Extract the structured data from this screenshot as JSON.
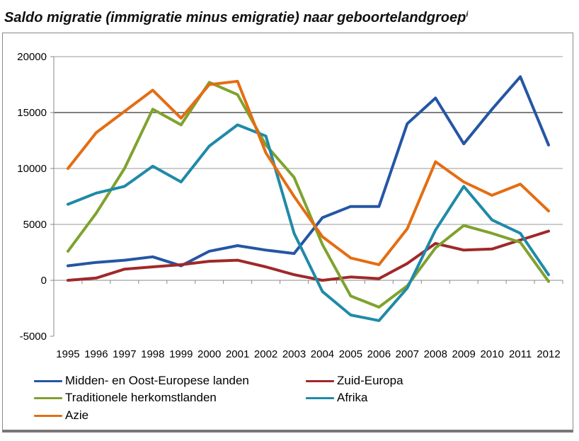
{
  "title": {
    "main": "Saldo migratie (immigratie minus emigratie) naar geboortelandgroep",
    "superscript": "i"
  },
  "chart_data": {
    "type": "line",
    "title": "Saldo migratie (immigratie minus emigratie) naar geboortelandgroep",
    "xlabel": "",
    "ylabel": "",
    "ylim": [
      -5000,
      20000
    ],
    "yticks": [
      -5000,
      0,
      5000,
      10000,
      15000,
      20000
    ],
    "grid": "horizontal",
    "legend_position": "bottom",
    "x": [
      "1995",
      "1996",
      "1997",
      "1998",
      "1999",
      "2000",
      "2001",
      "2002",
      "2003",
      "2004",
      "2005",
      "2006",
      "2007",
      "2008",
      "2009",
      "2010",
      "2011",
      "2012"
    ],
    "series": [
      {
        "name": "Midden- en Oost-Europese landen",
        "color": "#2456A4",
        "values": [
          1300,
          1600,
          1800,
          2100,
          1300,
          2600,
          3100,
          2700,
          2400,
          5600,
          6600,
          6600,
          14000,
          16300,
          12200,
          15300,
          18200,
          12100
        ]
      },
      {
        "name": "Zuid-Europa",
        "color": "#A0282A",
        "values": [
          0,
          200,
          1000,
          1200,
          1400,
          1700,
          1800,
          1200,
          500,
          0,
          300,
          150,
          1500,
          3300,
          2700,
          2800,
          3600,
          4400
        ]
      },
      {
        "name": "Traditionele herkomstlanden",
        "color": "#7FA22E",
        "values": [
          2600,
          6000,
          10000,
          15300,
          13900,
          17700,
          16600,
          12100,
          9200,
          3200,
          -1400,
          -2400,
          -500,
          2900,
          4900,
          4200,
          3400,
          -100
        ]
      },
      {
        "name": "Afrika",
        "color": "#1F8AA7",
        "values": [
          6800,
          7800,
          8400,
          10200,
          8800,
          12000,
          13900,
          12900,
          4200,
          -1000,
          -3100,
          -3600,
          -700,
          4500,
          8400,
          5400,
          4200,
          500
        ]
      },
      {
        "name": "Azie",
        "color": "#E46D13",
        "values": [
          10000,
          13200,
          15100,
          17000,
          14500,
          17500,
          17800,
          11400,
          7500,
          3900,
          2000,
          1400,
          4600,
          10600,
          8800,
          7600,
          8600,
          6200
        ]
      }
    ]
  }
}
